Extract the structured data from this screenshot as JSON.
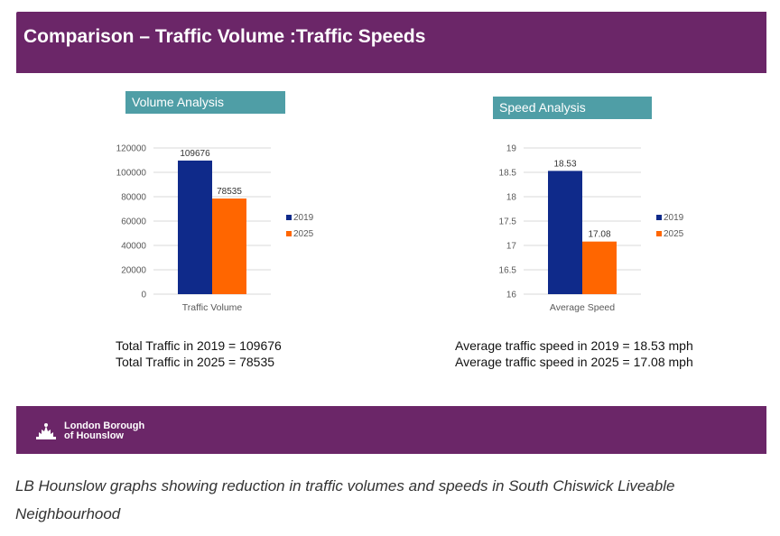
{
  "header": {
    "title": "Comparison – Traffic Volume :Traffic Speeds"
  },
  "volume_label": "Volume Analysis",
  "speed_label": "Speed Analysis",
  "chart_data": [
    {
      "type": "bar",
      "categories": [
        "Traffic Volume"
      ],
      "series": [
        {
          "name": "2019",
          "values": [
            109676
          ],
          "color": "#0f2a8a"
        },
        {
          "name": "2025",
          "values": [
            78535
          ],
          "color": "#ff6600"
        }
      ],
      "ylim": [
        0,
        120000
      ],
      "yticks": [
        "120000",
        "100000",
        "80000",
        "60000",
        "40000",
        "20000",
        "0"
      ],
      "data_labels": [
        "109676",
        "78535"
      ],
      "grid": true,
      "legend": "right"
    },
    {
      "type": "bar",
      "categories": [
        "Average Speed"
      ],
      "series": [
        {
          "name": "2019",
          "values": [
            18.53
          ],
          "color": "#0f2a8a"
        },
        {
          "name": "2025",
          "values": [
            17.08
          ],
          "color": "#ff6600"
        }
      ],
      "ylim": [
        16,
        19
      ],
      "yticks": [
        "19",
        "18.5",
        "18",
        "17.5",
        "17",
        "16.5",
        "16"
      ],
      "data_labels": [
        "18.53",
        "17.08"
      ],
      "grid": true,
      "legend": "right"
    }
  ],
  "volume_summary": [
    "Total Traffic in 2019 = 109676",
    "Total Traffic in 2025 = 78535"
  ],
  "speed_summary": [
    "Average traffic speed in 2019 = 18.53 mph",
    "Average traffic speed in 2025 = 17.08 mph"
  ],
  "footer": {
    "logo_line1": "London Borough",
    "logo_line2": "of Hounslow"
  },
  "caption": "LB Hounslow graphs showing reduction in traffic volumes and speeds in South Chiswick Liveable Neighbourhood"
}
